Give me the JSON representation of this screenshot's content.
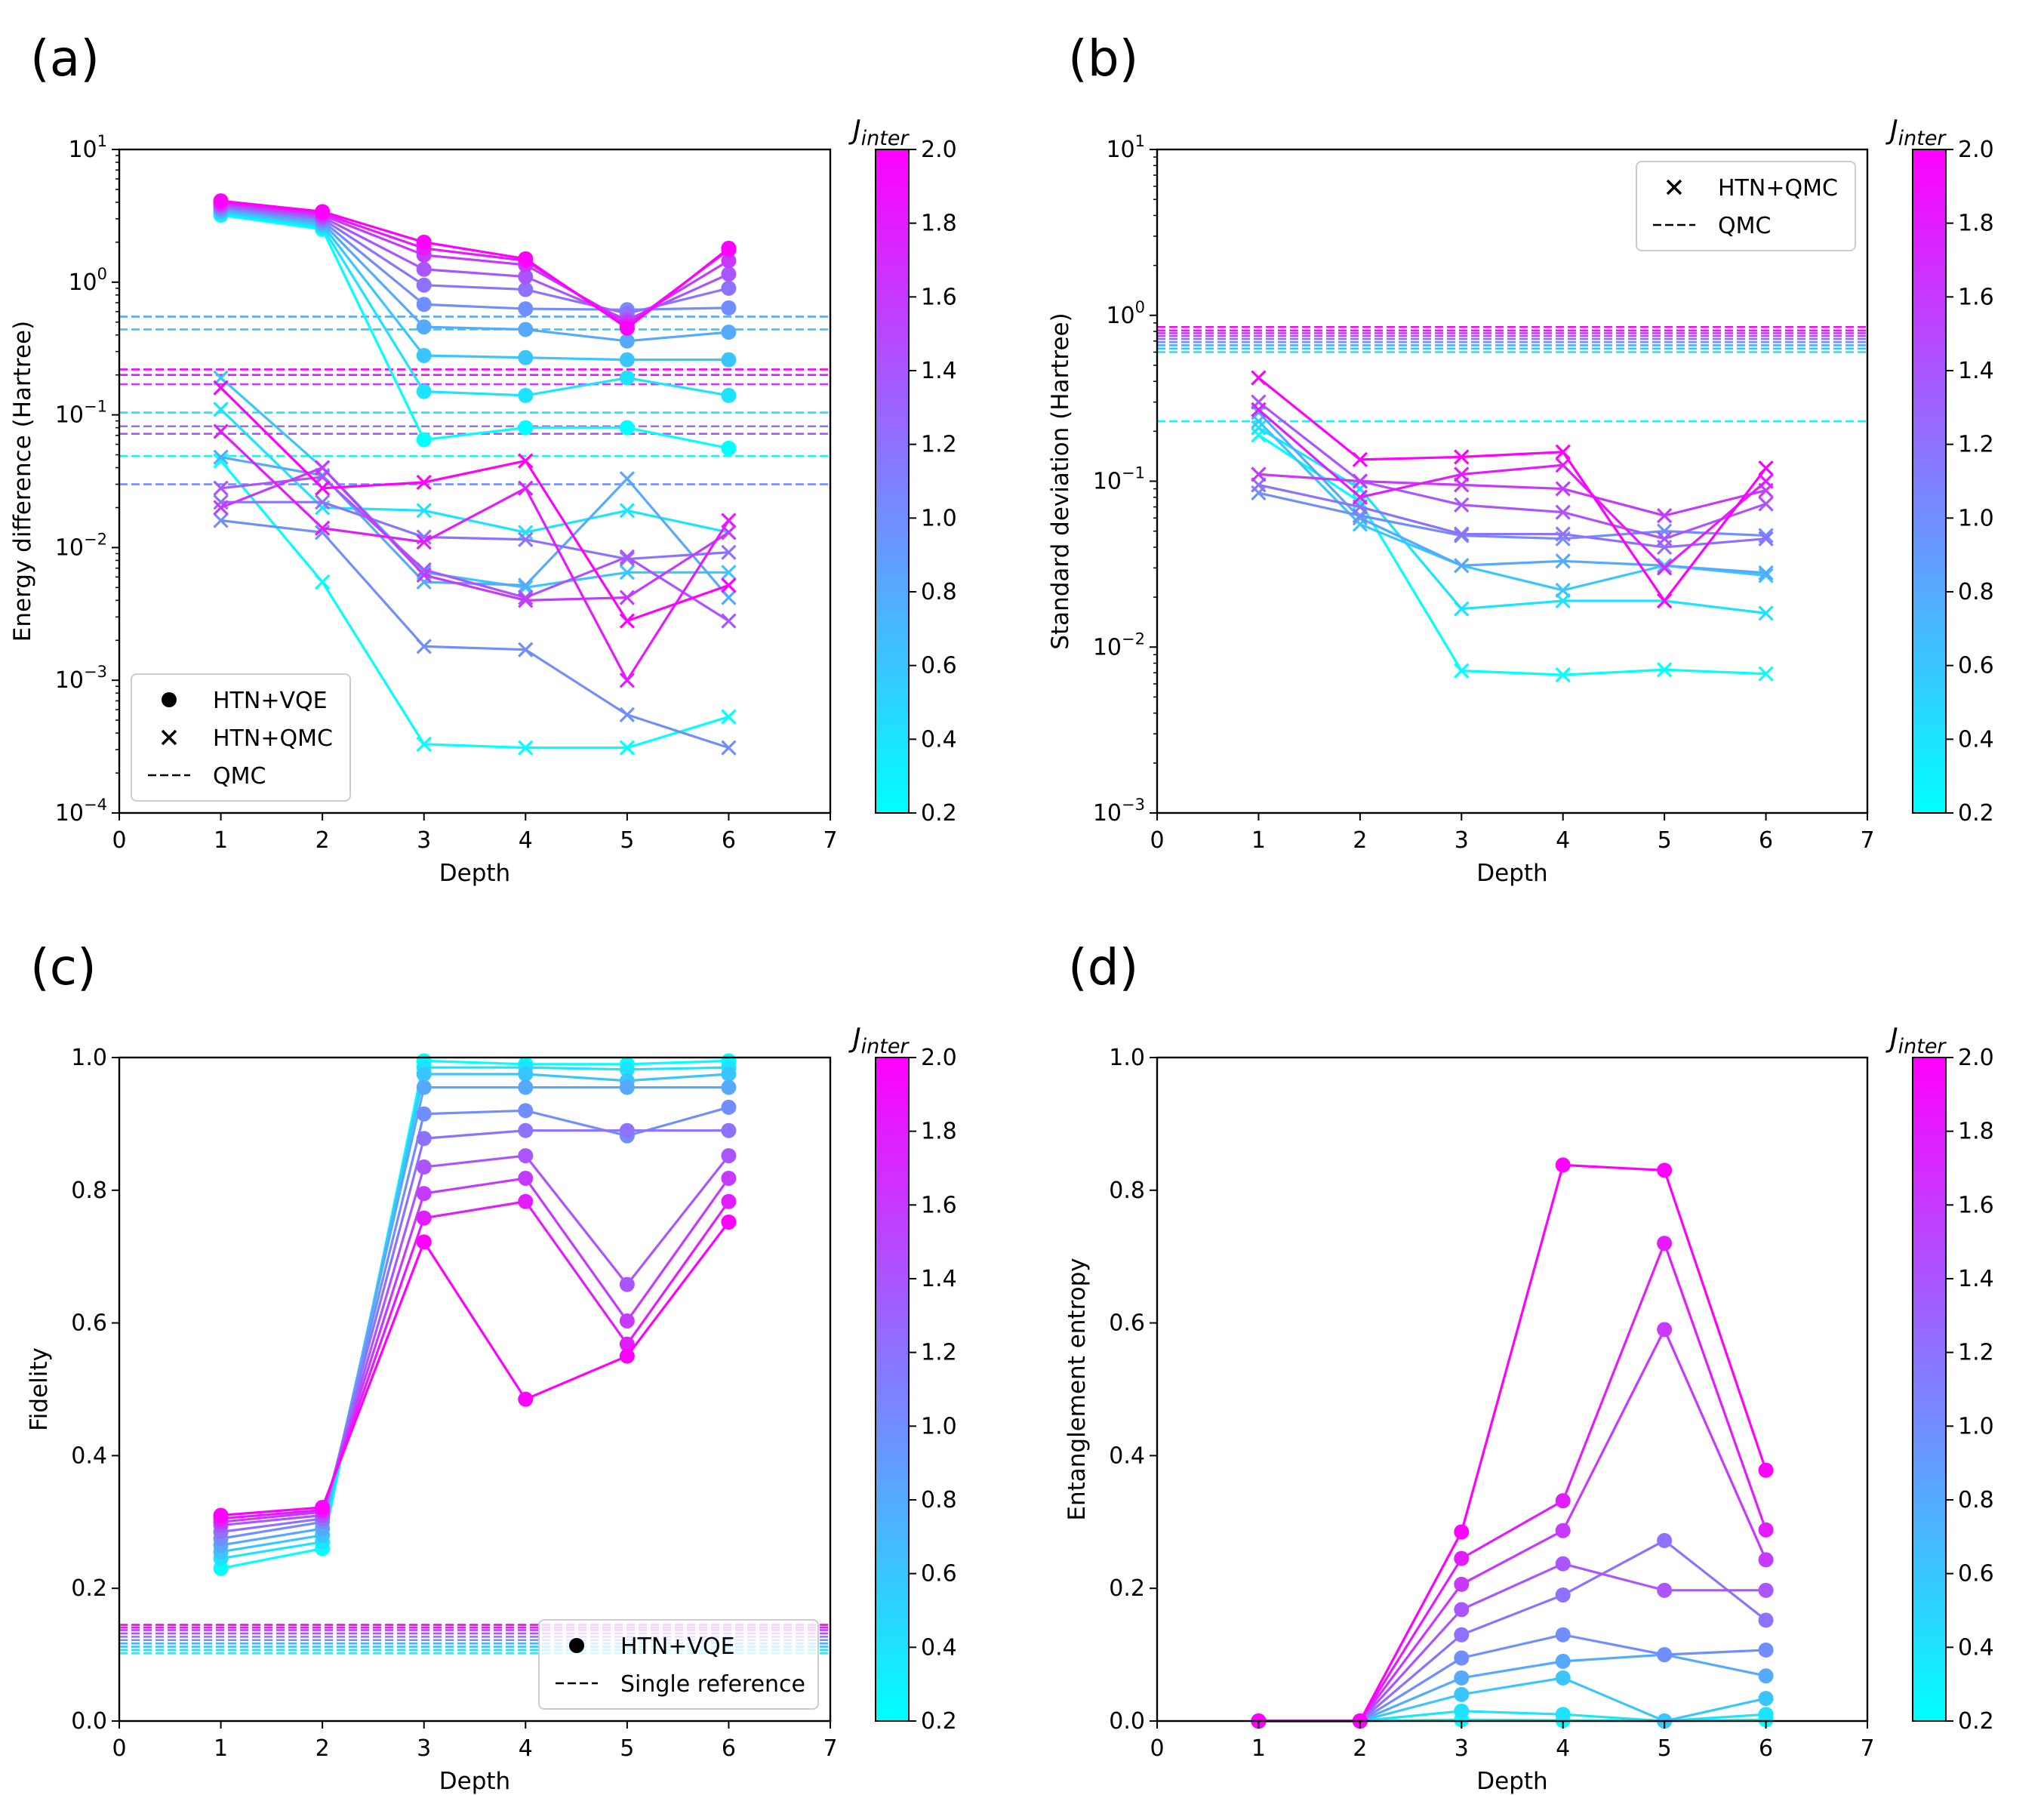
{
  "figure": {
    "colorbar_label": "J",
    "colorbar_subscript": "inter",
    "colorbar_ticks": [
      "0.2",
      "0.4",
      "0.6",
      "0.8",
      "1.0",
      "1.2",
      "1.4",
      "1.6",
      "1.8",
      "2.0"
    ],
    "colormap": {
      "low": "#00ffff",
      "high": "#ff00ff"
    },
    "panels": [
      "(a)",
      "(b)",
      "(c)",
      "(d)"
    ]
  },
  "chart_data": [
    {
      "panel": "(a)",
      "type": "line",
      "xlabel": "Depth",
      "ylabel": "Energy difference (Hartree)",
      "yscale": "log",
      "xlim": [
        0,
        7
      ],
      "ylim": [
        0.0001,
        10
      ],
      "xticks": [
        "0",
        "1",
        "2",
        "3",
        "4",
        "5",
        "6",
        "7"
      ],
      "yticks_exp": [
        "1",
        "0",
        "−1",
        "−2",
        "−3",
        "−4"
      ],
      "x": [
        1,
        2,
        3,
        4,
        5,
        6
      ],
      "j_values": [
        0.2,
        0.4,
        0.6,
        0.8,
        1.0,
        1.2,
        1.4,
        1.6,
        1.8,
        2.0
      ],
      "legend": {
        "position": "lower-left",
        "entries": [
          "HTN+VQE",
          "HTN+QMC",
          "QMC"
        ]
      },
      "series_vqe": [
        [
          3.2,
          2.5,
          0.065,
          0.08,
          0.08,
          0.056
        ],
        [
          3.3,
          2.6,
          0.15,
          0.14,
          0.19,
          0.14
        ],
        [
          3.4,
          2.7,
          0.28,
          0.27,
          0.26,
          0.26
        ],
        [
          3.5,
          2.8,
          0.46,
          0.44,
          0.36,
          0.42
        ],
        [
          3.6,
          2.9,
          0.68,
          0.63,
          0.62,
          0.64
        ],
        [
          3.7,
          3.0,
          0.95,
          0.88,
          0.58,
          0.9
        ],
        [
          3.8,
          3.1,
          1.25,
          1.1,
          0.52,
          1.15
        ],
        [
          3.9,
          3.2,
          1.6,
          1.35,
          0.5,
          1.45
        ],
        [
          4.0,
          3.3,
          1.8,
          1.45,
          0.47,
          1.75
        ],
        [
          4.1,
          3.4,
          2.0,
          1.5,
          0.45,
          1.8
        ]
      ],
      "series_qmc": [
        [
          0.045,
          0.0055,
          0.00033,
          0.00031,
          0.00031,
          0.00053
        ],
        [
          0.11,
          0.02,
          0.019,
          0.013,
          0.019,
          0.013
        ],
        [
          0.19,
          0.04,
          0.0065,
          0.005,
          0.0065,
          0.0065
        ],
        [
          0.048,
          0.035,
          0.0055,
          0.0052,
          0.033,
          0.0042
        ],
        [
          0.016,
          0.013,
          0.0018,
          0.0017,
          0.00055,
          0.00031
        ],
        [
          0.022,
          0.022,
          0.012,
          0.0115,
          0.0082,
          0.0092
        ],
        [
          0.028,
          0.034,
          0.0068,
          0.0042,
          0.0085,
          0.0028
        ],
        [
          0.02,
          0.04,
          0.0062,
          0.004,
          0.0042,
          0.013
        ],
        [
          0.075,
          0.014,
          0.011,
          0.028,
          0.001,
          0.016
        ],
        [
          0.16,
          0.028,
          0.031,
          0.045,
          0.0028,
          0.0052
        ]
      ],
      "qmc_ref": [
        0.049,
        0.104,
        0.44,
        0.55,
        0.03,
        0.082,
        0.072,
        0.17,
        0.2,
        0.22
      ]
    },
    {
      "panel": "(b)",
      "type": "line",
      "xlabel": "Depth",
      "ylabel": "Standard deviation (Hartree)",
      "yscale": "log",
      "xlim": [
        0,
        7
      ],
      "ylim": [
        0.001,
        10
      ],
      "xticks": [
        "0",
        "1",
        "2",
        "3",
        "4",
        "5",
        "6",
        "7"
      ],
      "yticks_exp": [
        "1",
        "0",
        "−1",
        "−2",
        "−3"
      ],
      "x": [
        1,
        2,
        3,
        4,
        5,
        6
      ],
      "j_values": [
        0.2,
        0.4,
        0.6,
        0.8,
        1.0,
        1.2,
        1.4,
        1.6,
        1.8,
        2.0
      ],
      "legend": {
        "position": "upper-right",
        "entries": [
          "HTN+QMC",
          "QMC"
        ]
      },
      "series_qmc": [
        [
          0.19,
          0.075,
          0.0072,
          0.0068,
          0.0073,
          0.0069
        ],
        [
          0.21,
          0.09,
          0.017,
          0.019,
          0.019,
          0.016
        ],
        [
          0.23,
          0.055,
          0.031,
          0.022,
          0.031,
          0.027
        ],
        [
          0.26,
          0.06,
          0.031,
          0.033,
          0.031,
          0.028
        ],
        [
          0.085,
          0.062,
          0.047,
          0.045,
          0.05,
          0.047
        ],
        [
          0.095,
          0.07,
          0.048,
          0.048,
          0.04,
          0.045
        ],
        [
          0.3,
          0.1,
          0.072,
          0.065,
          0.045,
          0.073
        ],
        [
          0.11,
          0.1,
          0.095,
          0.09,
          0.062,
          0.088
        ],
        [
          0.27,
          0.08,
          0.11,
          0.125,
          0.03,
          0.1
        ],
        [
          0.42,
          0.135,
          0.14,
          0.15,
          0.019,
          0.12
        ]
      ],
      "qmc_ref": [
        0.23,
        0.6,
        0.63,
        0.66,
        0.69,
        0.72,
        0.75,
        0.78,
        0.81,
        0.85
      ]
    },
    {
      "panel": "(c)",
      "type": "line",
      "xlabel": "Depth",
      "ylabel": "Fidelity",
      "yscale": "linear",
      "xlim": [
        0,
        7
      ],
      "ylim": [
        0,
        1
      ],
      "xticks": [
        "0",
        "1",
        "2",
        "3",
        "4",
        "5",
        "6",
        "7"
      ],
      "yticks": [
        "0.0",
        "0.2",
        "0.4",
        "0.6",
        "0.8",
        "1.0"
      ],
      "x": [
        1,
        2,
        3,
        4,
        5,
        6
      ],
      "j_values": [
        0.2,
        0.4,
        0.6,
        0.8,
        1.0,
        1.2,
        1.4,
        1.6,
        1.8,
        2.0
      ],
      "legend": {
        "position": "lower-right",
        "entries": [
          "HTN+VQE",
          "Single reference"
        ]
      },
      "series_vqe": [
        [
          0.23,
          0.26,
          0.995,
          0.99,
          0.99,
          0.995
        ],
        [
          0.245,
          0.27,
          0.985,
          0.985,
          0.982,
          0.985
        ],
        [
          0.255,
          0.28,
          0.975,
          0.975,
          0.965,
          0.975
        ],
        [
          0.265,
          0.29,
          0.955,
          0.955,
          0.955,
          0.955
        ],
        [
          0.275,
          0.3,
          0.915,
          0.92,
          0.882,
          0.925
        ],
        [
          0.285,
          0.305,
          0.878,
          0.89,
          0.89,
          0.89
        ],
        [
          0.295,
          0.31,
          0.835,
          0.852,
          0.658,
          0.852
        ],
        [
          0.3,
          0.315,
          0.795,
          0.818,
          0.603,
          0.818
        ],
        [
          0.305,
          0.318,
          0.758,
          0.783,
          0.568,
          0.783
        ],
        [
          0.31,
          0.322,
          0.722,
          0.485,
          0.55,
          0.752
        ]
      ],
      "single_ref": [
        0.102,
        0.107,
        0.112,
        0.117,
        0.122,
        0.127,
        0.132,
        0.137,
        0.141,
        0.145
      ]
    },
    {
      "panel": "(d)",
      "type": "line",
      "xlabel": "Depth",
      "ylabel": "Entanglement entropy",
      "yscale": "linear",
      "xlim": [
        0,
        7
      ],
      "ylim": [
        0,
        1
      ],
      "xticks": [
        "0",
        "1",
        "2",
        "3",
        "4",
        "5",
        "6",
        "7"
      ],
      "yticks": [
        "0.0",
        "0.2",
        "0.4",
        "0.6",
        "0.8",
        "1.0"
      ],
      "x": [
        1,
        2,
        3,
        4,
        5,
        6
      ],
      "j_values": [
        0.2,
        0.4,
        0.6,
        0.8,
        1.0,
        1.2,
        1.4,
        1.6,
        1.8,
        2.0
      ],
      "series_vqe": [
        [
          0,
          0,
          0.002,
          0.001,
          0,
          0.002
        ],
        [
          0,
          0,
          0.015,
          0.01,
          0,
          0.01
        ],
        [
          0,
          0,
          0.04,
          0.065,
          0,
          0.034
        ],
        [
          0,
          0,
          0.065,
          0.09,
          0.1,
          0.068
        ],
        [
          0,
          0,
          0.095,
          0.13,
          0.1,
          0.107
        ],
        [
          0,
          0,
          0.13,
          0.19,
          0.272,
          0.152
        ],
        [
          0,
          0,
          0.168,
          0.237,
          0.197,
          0.197
        ],
        [
          0,
          0,
          0.206,
          0.287,
          0.59,
          0.243
        ],
        [
          0,
          0,
          0.245,
          0.332,
          0.72,
          0.288
        ],
        [
          0,
          0,
          0.285,
          0.838,
          0.83,
          0.378
        ]
      ]
    }
  ]
}
